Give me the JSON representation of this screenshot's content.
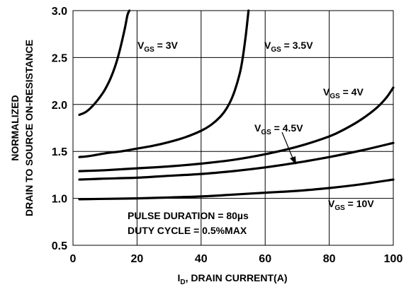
{
  "chart_data": {
    "type": "line",
    "title": "",
    "xlabel": {
      "main": "I",
      "sub": "D",
      "rest": ", DRAIN CURRENT(A)"
    },
    "ylabel": [
      "NORMALIZED",
      "DRAIN TO SOURCE ON-RESISTANCE"
    ],
    "xlim": [
      0,
      100
    ],
    "ylim": [
      0.5,
      3.0
    ],
    "xticks": [
      0,
      20,
      40,
      60,
      80,
      100
    ],
    "xtick_labels": [
      "0",
      "20",
      "40",
      "60",
      "80",
      "100"
    ],
    "yticks": [
      0.5,
      1.0,
      1.5,
      2.0,
      2.5,
      3.0
    ],
    "ytick_labels": [
      "0.5",
      "1.0",
      "1.5",
      "2.0",
      "2.5",
      "3.0"
    ],
    "grid": true,
    "series": [
      {
        "name": "VGS = 3V",
        "label_main": "V",
        "label_sub": "GS",
        "label_rest": " = 3V",
        "x": [
          2,
          4,
          6,
          8,
          10,
          12,
          14,
          16,
          17,
          17.6
        ],
        "y": [
          1.89,
          1.92,
          1.98,
          2.06,
          2.16,
          2.3,
          2.5,
          2.78,
          2.95,
          3.0
        ]
      },
      {
        "name": "VGS = 3.5V",
        "label_main": "V",
        "label_sub": "GS",
        "label_rest": " = 3.5V",
        "x": [
          2,
          5,
          10,
          15,
          20,
          25,
          30,
          35,
          40,
          43,
          46,
          48,
          50,
          52,
          53,
          54,
          54.8
        ],
        "y": [
          1.44,
          1.45,
          1.48,
          1.5,
          1.53,
          1.56,
          1.6,
          1.65,
          1.72,
          1.78,
          1.87,
          1.96,
          2.1,
          2.32,
          2.5,
          2.75,
          3.0
        ]
      },
      {
        "name": "VGS = 4V",
        "label_main": "V",
        "label_sub": "GS",
        "label_rest": " = 4V",
        "x": [
          2,
          10,
          20,
          30,
          40,
          50,
          60,
          70,
          80,
          85,
          90,
          95,
          98,
          100
        ],
        "y": [
          1.29,
          1.3,
          1.32,
          1.34,
          1.37,
          1.41,
          1.47,
          1.55,
          1.66,
          1.74,
          1.84,
          1.97,
          2.08,
          2.18
        ]
      },
      {
        "name": "VGS = 4.5V",
        "label_main": "V",
        "label_sub": "GS",
        "label_rest": " = 4.5V",
        "x": [
          2,
          10,
          20,
          30,
          40,
          50,
          60,
          70,
          80,
          90,
          100
        ],
        "y": [
          1.2,
          1.21,
          1.22,
          1.24,
          1.26,
          1.29,
          1.33,
          1.38,
          1.44,
          1.51,
          1.59
        ]
      },
      {
        "name": "VGS = 10V",
        "label_main": "V",
        "label_sub": "GS",
        "label_rest": " = 10V",
        "x": [
          2,
          10,
          20,
          30,
          40,
          50,
          60,
          70,
          80,
          90,
          100
        ],
        "y": [
          0.99,
          0.995,
          1.0,
          1.01,
          1.02,
          1.04,
          1.06,
          1.08,
          1.11,
          1.15,
          1.2
        ]
      }
    ],
    "annotations": [
      "PULSE DURATION = 80µs",
      "DUTY CYCLE = 0.5%MAX"
    ]
  }
}
